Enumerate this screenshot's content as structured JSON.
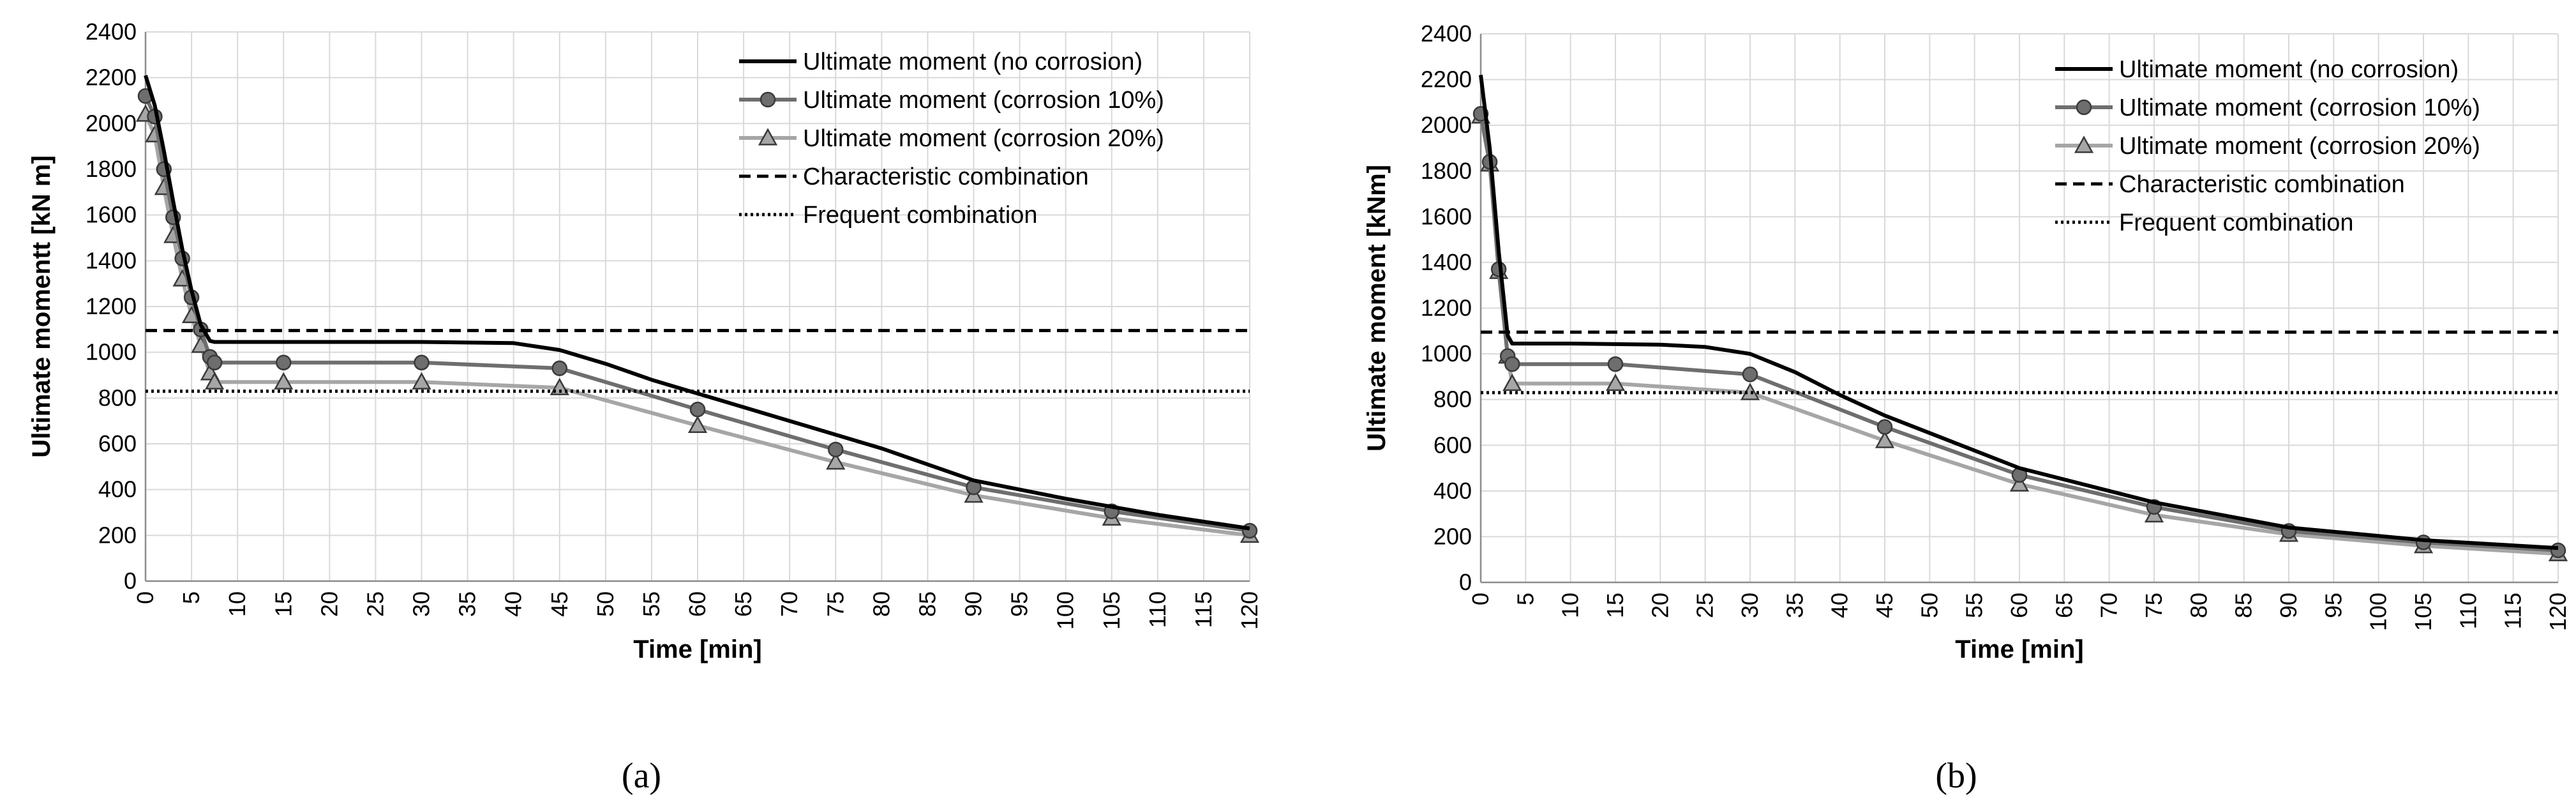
{
  "chart_data": [
    {
      "type": "line",
      "panel_label": "(a)",
      "xlabel": "Time [min]",
      "ylabel": "Ultimate momentt [kN m]",
      "xlim": [
        0,
        120
      ],
      "ylim": [
        0,
        2400
      ],
      "xticks": [
        0,
        5,
        10,
        15,
        20,
        25,
        30,
        35,
        40,
        45,
        50,
        55,
        60,
        65,
        70,
        75,
        80,
        85,
        90,
        95,
        100,
        105,
        110,
        115,
        120
      ],
      "yticks": [
        0,
        200,
        400,
        600,
        800,
        1000,
        1200,
        1400,
        1600,
        1800,
        2000,
        2200,
        2400
      ],
      "grid": true,
      "legend_position": "top-right",
      "series": [
        {
          "name": "Ultimate moment (no corrosion)",
          "color": "#000000",
          "marker": "none",
          "style": "solid",
          "x": [
            0,
            1,
            2,
            3,
            4,
            5,
            6,
            7,
            7.5,
            10,
            20,
            30,
            40,
            45,
            50,
            55,
            60,
            70,
            80,
            90,
            100,
            110,
            120
          ],
          "y": [
            2210,
            2080,
            1880,
            1660,
            1450,
            1270,
            1120,
            1050,
            1045,
            1045,
            1045,
            1045,
            1040,
            1010,
            950,
            880,
            820,
            700,
            580,
            440,
            360,
            290,
            230
          ]
        },
        {
          "name": "Ultimate moment (corrosion 10%)",
          "color": "#6e6e6e",
          "marker": "circle",
          "style": "solid",
          "x": [
            0,
            1,
            2,
            3,
            4,
            5,
            6,
            7,
            7.5,
            15,
            30,
            45,
            60,
            75,
            90,
            105,
            120
          ],
          "y": [
            2120,
            2030,
            1800,
            1590,
            1410,
            1240,
            1100,
            980,
            955,
            955,
            955,
            930,
            750,
            575,
            410,
            305,
            220
          ]
        },
        {
          "name": "Ultimate moment (corrosion 20%)",
          "color": "#a6a6a6",
          "marker": "triangle",
          "style": "solid",
          "x": [
            0,
            1,
            2,
            3,
            4,
            5,
            6,
            7,
            7.5,
            15,
            30,
            45,
            60,
            75,
            90,
            105,
            120
          ],
          "y": [
            2040,
            1950,
            1720,
            1510,
            1320,
            1160,
            1030,
            910,
            870,
            870,
            870,
            845,
            680,
            520,
            375,
            275,
            200
          ]
        },
        {
          "name": "Characteristic combination",
          "color": "#000000",
          "marker": "none",
          "style": "dashed",
          "x": [
            0,
            120
          ],
          "y": [
            1095,
            1095
          ]
        },
        {
          "name": "Frequent combination",
          "color": "#000000",
          "marker": "none",
          "style": "dotted",
          "x": [
            0,
            120
          ],
          "y": [
            830,
            830
          ]
        }
      ]
    },
    {
      "type": "line",
      "panel_label": "(b)",
      "xlabel": "Time [min]",
      "ylabel": "Ultimate moment [kNm]",
      "xlim": [
        0,
        120
      ],
      "ylim": [
        0,
        2400
      ],
      "xticks": [
        0,
        5,
        10,
        15,
        20,
        25,
        30,
        35,
        40,
        45,
        50,
        55,
        60,
        65,
        70,
        75,
        80,
        85,
        90,
        95,
        100,
        105,
        110,
        115,
        120
      ],
      "yticks": [
        0,
        200,
        400,
        600,
        800,
        1000,
        1200,
        1400,
        1600,
        1800,
        2000,
        2200,
        2400
      ],
      "grid": true,
      "legend_position": "top-right",
      "series": [
        {
          "name": "Ultimate moment (no corrosion)",
          "color": "#000000",
          "marker": "none",
          "style": "solid",
          "x": [
            0,
            1,
            2,
            3,
            3.5,
            10,
            20,
            25,
            30,
            35,
            40,
            45,
            60,
            75,
            90,
            105,
            120
          ],
          "y": [
            2220,
            1900,
            1450,
            1080,
            1045,
            1045,
            1040,
            1030,
            1000,
            920,
            820,
            730,
            500,
            350,
            240,
            185,
            150
          ]
        },
        {
          "name": "Ultimate moment (corrosion 10%)",
          "color": "#6e6e6e",
          "marker": "circle",
          "style": "solid",
          "x": [
            0,
            1,
            2,
            3,
            3.5,
            15,
            30,
            45,
            60,
            75,
            90,
            105,
            120
          ],
          "y": [
            2050,
            1840,
            1370,
            990,
            955,
            955,
            910,
            680,
            470,
            330,
            225,
            175,
            140
          ]
        },
        {
          "name": "Ultimate moment (corrosion 20%)",
          "color": "#a6a6a6",
          "marker": "triangle",
          "style": "solid",
          "x": [
            0,
            1,
            2,
            3,
            3.5,
            15,
            30,
            45,
            60,
            75,
            90,
            105,
            120
          ],
          "y": [
            2040,
            1830,
            1360,
            990,
            870,
            870,
            830,
            620,
            430,
            295,
            210,
            160,
            125
          ]
        },
        {
          "name": "Characteristic combination",
          "color": "#000000",
          "marker": "none",
          "style": "dashed",
          "x": [
            0,
            120
          ],
          "y": [
            1095,
            1095
          ]
        },
        {
          "name": "Frequent combination",
          "color": "#000000",
          "marker": "none",
          "style": "dotted",
          "x": [
            0,
            120
          ],
          "y": [
            830,
            830
          ]
        }
      ]
    }
  ]
}
